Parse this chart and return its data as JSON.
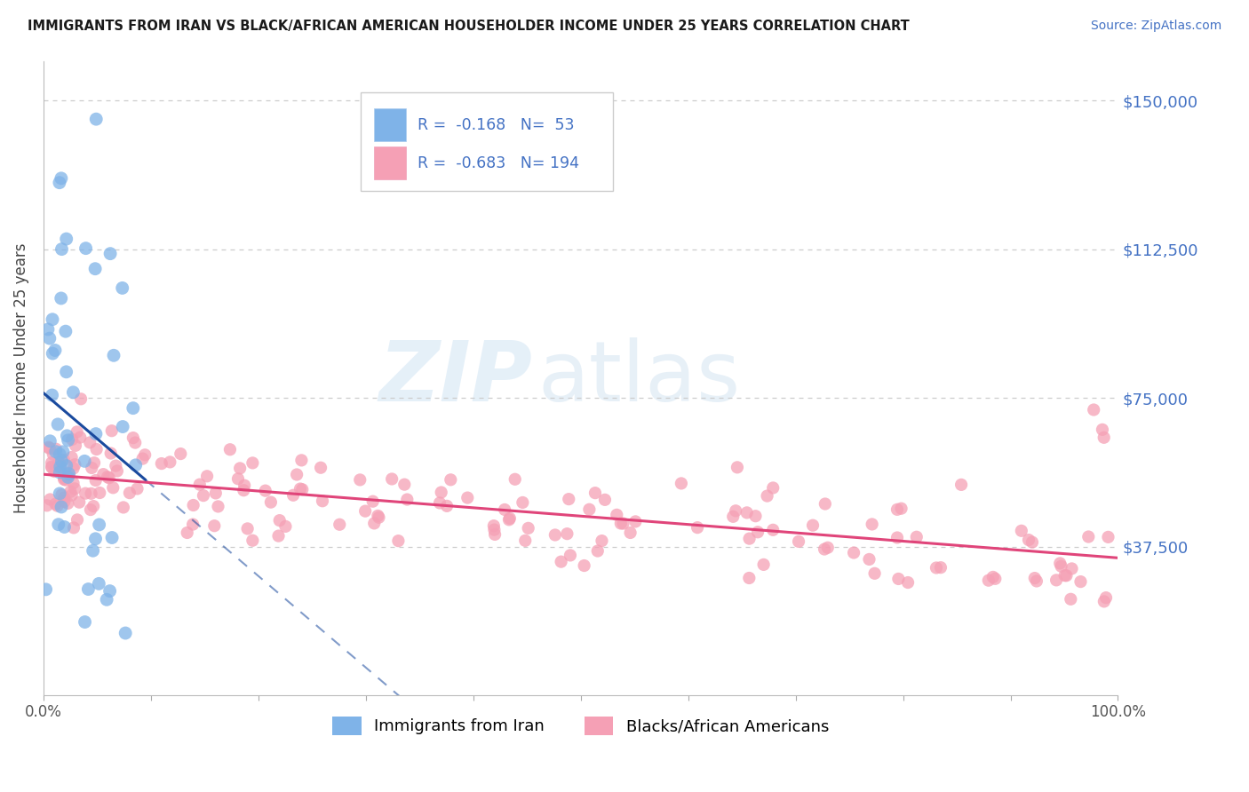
{
  "title": "IMMIGRANTS FROM IRAN VS BLACK/AFRICAN AMERICAN HOUSEHOLDER INCOME UNDER 25 YEARS CORRELATION CHART",
  "source": "Source: ZipAtlas.com",
  "ylabel": "Householder Income Under 25 years",
  "ytick_labels": [
    "$150,000",
    "$112,500",
    "$75,000",
    "$37,500"
  ],
  "ytick_values": [
    150000,
    112500,
    75000,
    37500
  ],
  "ylim": [
    0,
    160000
  ],
  "xlim": [
    0.0,
    1.0
  ],
  "legend_r_iran": "-0.168",
  "legend_n_iran": "53",
  "legend_r_black": "-0.683",
  "legend_n_black": "194",
  "color_iran": "#7fb3e8",
  "color_black": "#f5a0b5",
  "line_color_iran": "#1a4a9e",
  "line_color_black": "#e0457a",
  "background_color": "#ffffff",
  "grid_color": "#cccccc"
}
